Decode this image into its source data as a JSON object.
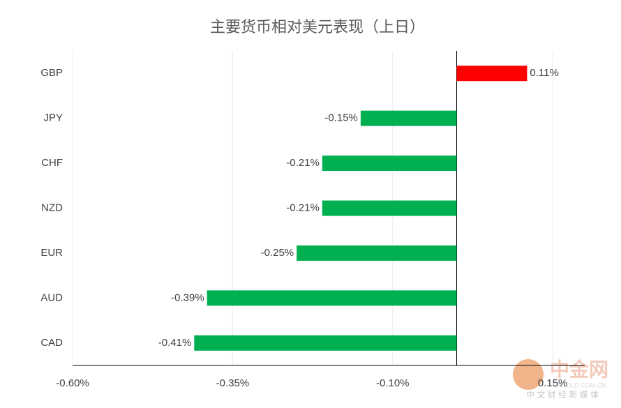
{
  "chart_data": {
    "type": "bar",
    "orientation": "horizontal",
    "title": "主要货币相对美元表现（上日）",
    "categories": [
      "GBP",
      "JPY",
      "CHF",
      "NZD",
      "EUR",
      "AUD",
      "CAD"
    ],
    "values": [
      0.11,
      -0.15,
      -0.21,
      -0.21,
      -0.25,
      -0.39,
      -0.41
    ],
    "value_labels": [
      "0.11%",
      "-0.15%",
      "-0.21%",
      "-0.21%",
      "-0.25%",
      "-0.39%",
      "-0.41%"
    ],
    "colors": [
      "#ff0000",
      "#00b050",
      "#00b050",
      "#00b050",
      "#00b050",
      "#00b050",
      "#00b050"
    ],
    "xlim": [
      -0.6,
      0.2
    ],
    "xticks": [
      {
        "value": -0.6,
        "label": "-0.60%"
      },
      {
        "value": -0.35,
        "label": "-0.35%"
      },
      {
        "value": -0.1,
        "label": "-0.10%"
      },
      {
        "value": 0.15,
        "label": "0.15%"
      }
    ],
    "grid": true
  },
  "watermark": {
    "name": "中金网",
    "site": "CNGOLD.COM.CN",
    "slogan": "中 文 财 经 新 媒 体"
  }
}
